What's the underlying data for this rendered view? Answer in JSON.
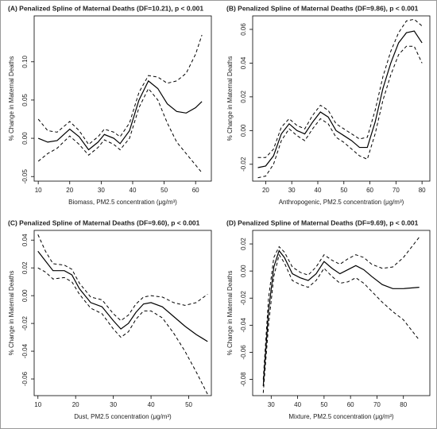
{
  "chart_data": [
    {
      "type": "line",
      "title": "(A) Penalized Spline of Maternal Deaths (DF=10.21), p < 0.001",
      "xlabel": "Biomass, PM2.5 concentration (μg/m³)",
      "ylabel": "% Change in Maternal Deaths",
      "x": [
        10,
        13,
        16,
        20,
        23,
        26,
        29,
        31,
        34,
        36,
        39,
        42,
        45,
        48,
        51,
        54,
        57,
        60,
        62
      ],
      "series": [
        {
          "style": "solid",
          "color": "#000000",
          "values": [
            0.0,
            -0.005,
            -0.003,
            0.012,
            0.002,
            -0.015,
            -0.005,
            0.005,
            0.0,
            -0.007,
            0.01,
            0.05,
            0.075,
            0.065,
            0.045,
            0.035,
            0.033,
            0.04,
            0.048
          ]
        },
        {
          "style": "dashed",
          "color": "#000000",
          "values": [
            0.025,
            0.01,
            0.008,
            0.022,
            0.01,
            -0.008,
            0.002,
            0.012,
            0.008,
            0.002,
            0.02,
            0.06,
            0.082,
            0.08,
            0.072,
            0.075,
            0.085,
            0.11,
            0.135
          ]
        },
        {
          "style": "dashed",
          "color": "#000000",
          "values": [
            -0.03,
            -0.02,
            -0.013,
            0.003,
            -0.008,
            -0.022,
            -0.012,
            -0.002,
            -0.008,
            -0.015,
            0.0,
            0.04,
            0.065,
            0.05,
            0.02,
            -0.005,
            -0.02,
            -0.035,
            -0.045
          ]
        }
      ],
      "xlim": [
        8.7,
        65
      ],
      "ylim": [
        -0.056,
        0.16
      ],
      "xticks": [
        10,
        20,
        30,
        40,
        50,
        60
      ],
      "yticks": [
        -0.05,
        {
          "value": 0,
          "label": "0.00"
        },
        0.05,
        {
          "value": 0.1,
          "label": "0.10"
        }
      ]
    },
    {
      "type": "line",
      "title": "(B) Penalized Spline of Maternal Deaths (DF=9.86), p < 0.001",
      "xlabel": "Anthropogenic, PM2.5 concentration (μg/m³)",
      "ylabel": "% Change in Maternal Deaths",
      "x": [
        17,
        20,
        23,
        26,
        29,
        32,
        35,
        38,
        41,
        44,
        47,
        50,
        53,
        56,
        59,
        62,
        65,
        68,
        71,
        74,
        77,
        80
      ],
      "series": [
        {
          "style": "solid",
          "color": "#000000",
          "values": [
            -0.022,
            -0.021,
            -0.015,
            -0.002,
            0.004,
            0.0,
            -0.002,
            0.005,
            0.011,
            0.008,
            0.0,
            -0.003,
            -0.006,
            -0.01,
            -0.01,
            0.005,
            0.025,
            0.04,
            0.052,
            0.058,
            0.059,
            0.052
          ]
        },
        {
          "style": "dashed",
          "color": "#000000",
          "values": [
            -0.016,
            -0.016,
            -0.011,
            0.002,
            0.007,
            0.003,
            0.001,
            0.009,
            0.015,
            0.012,
            0.004,
            0.001,
            -0.002,
            -0.005,
            -0.004,
            0.012,
            0.032,
            0.047,
            0.058,
            0.065,
            0.066,
            0.062
          ]
        },
        {
          "style": "dashed",
          "color": "#000000",
          "values": [
            -0.028,
            -0.027,
            -0.02,
            -0.006,
            0.001,
            -0.003,
            -0.006,
            0.001,
            0.007,
            0.004,
            -0.004,
            -0.007,
            -0.011,
            -0.015,
            -0.017,
            -0.002,
            0.018,
            0.033,
            0.045,
            0.05,
            0.05,
            0.04
          ]
        }
      ],
      "xlim": [
        15,
        83
      ],
      "ylim": [
        -0.03,
        0.068
      ],
      "xticks": [
        20,
        30,
        40,
        50,
        60,
        70,
        80
      ],
      "yticks": [
        -0.02,
        {
          "value": 0,
          "label": "0.00"
        },
        0.02,
        0.04,
        0.06
      ]
    },
    {
      "type": "line",
      "title": "(C) Penalized Spline of Maternal Deaths (DF=9.60), p < 0.001",
      "xlabel": "Dust, PM2.5 concentration (μg/m³)",
      "ylabel": "% Change in Maternal Deaths",
      "x": [
        10,
        12,
        14,
        17,
        19,
        21,
        24,
        27,
        30,
        32,
        34,
        36,
        38,
        40,
        43,
        46,
        49,
        52,
        55
      ],
      "series": [
        {
          "style": "solid",
          "color": "#000000",
          "values": [
            0.032,
            0.025,
            0.018,
            0.018,
            0.015,
            0.005,
            -0.005,
            -0.008,
            -0.018,
            -0.024,
            -0.02,
            -0.012,
            -0.006,
            -0.005,
            -0.008,
            -0.015,
            -0.022,
            -0.028,
            -0.033
          ]
        },
        {
          "style": "dashed",
          "color": "#000000",
          "values": [
            0.044,
            0.032,
            0.023,
            0.022,
            0.019,
            0.009,
            -0.001,
            -0.003,
            -0.013,
            -0.018,
            -0.014,
            -0.006,
            -0.001,
            0.0,
            -0.001,
            -0.005,
            -0.007,
            -0.005,
            0.001
          ]
        },
        {
          "style": "dashed",
          "color": "#000000",
          "values": [
            0.02,
            0.017,
            0.012,
            0.013,
            0.01,
            0.001,
            -0.009,
            -0.013,
            -0.024,
            -0.03,
            -0.026,
            -0.017,
            -0.011,
            -0.011,
            -0.016,
            -0.027,
            -0.04,
            -0.055,
            -0.071
          ]
        }
      ],
      "xlim": [
        9,
        56
      ],
      "ylim": [
        -0.072,
        0.047
      ],
      "xticks": [
        10,
        20,
        30,
        40,
        50
      ],
      "yticks": [
        -0.06,
        -0.04,
        -0.02,
        {
          "value": 0,
          "label": "0.00"
        },
        0.02,
        0.04
      ]
    },
    {
      "type": "line",
      "title": "(D) Penalized Spline of Maternal Deaths (DF=9.69), p < 0.001",
      "xlabel": "Mixture, PM2.5 concentration (μg/m³)",
      "ylabel": "% Change in Maternal Deaths",
      "x": [
        27,
        29,
        31,
        33,
        35,
        38,
        41,
        44,
        47,
        50,
        53,
        56,
        59,
        62,
        65,
        68,
        72,
        76,
        80,
        86
      ],
      "series": [
        {
          "style": "solid",
          "color": "#000000",
          "values": [
            -0.085,
            -0.03,
            0.003,
            0.015,
            0.01,
            -0.002,
            -0.005,
            -0.007,
            -0.002,
            0.007,
            0.002,
            -0.002,
            0.001,
            0.004,
            0.001,
            -0.004,
            -0.01,
            -0.013,
            -0.013,
            -0.012
          ]
        },
        {
          "style": "dashed",
          "color": "#000000",
          "values": [
            -0.08,
            -0.02,
            0.01,
            0.018,
            0.014,
            0.003,
            -0.001,
            -0.003,
            0.003,
            0.012,
            0.008,
            0.005,
            0.009,
            0.012,
            0.01,
            0.005,
            0.002,
            0.003,
            0.01,
            0.025
          ]
        },
        {
          "style": "dashed",
          "color": "#000000",
          "values": [
            -0.09,
            -0.04,
            -0.004,
            0.012,
            0.006,
            -0.007,
            -0.01,
            -0.012,
            -0.007,
            0.002,
            -0.004,
            -0.009,
            -0.008,
            -0.005,
            -0.009,
            -0.015,
            -0.023,
            -0.03,
            -0.036,
            -0.051
          ]
        }
      ],
      "xlim": [
        23,
        90
      ],
      "ylim": [
        -0.092,
        0.03
      ],
      "xticks": [
        30,
        40,
        50,
        60,
        70,
        80
      ],
      "yticks": [
        -0.08,
        -0.06,
        -0.04,
        -0.02,
        {
          "value": 0,
          "label": "0.00"
        },
        0.02
      ]
    }
  ]
}
